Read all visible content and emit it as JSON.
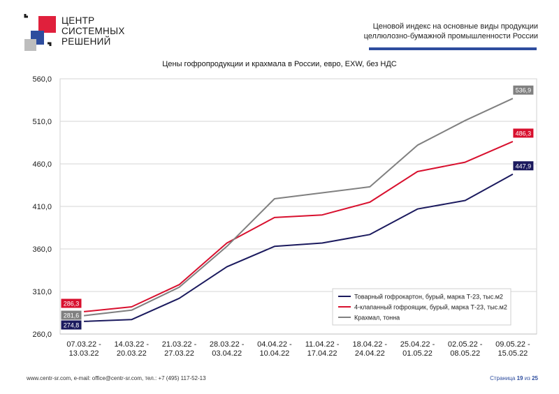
{
  "brand": {
    "name_lines": [
      "ЦЕНТР",
      "СИСТЕМНЫХ",
      "РЕШЕНИЙ"
    ],
    "colors": {
      "red": "#e0203c",
      "blue": "#2e4d9e",
      "gray": "#b8b8b8",
      "dark": "#1a1a1a"
    }
  },
  "header": {
    "title_line1": "Ценовой индекс на основные виды продукции",
    "title_line2": "целлюлозно-бумажной промышленности России"
  },
  "chart_data": {
    "type": "line",
    "title": "Цены гофропродукции и крахмала в России, евро, EXW, без НДС",
    "categories": [
      [
        "07.03.22 -",
        "13.03.22"
      ],
      [
        "14.03.22 -",
        "20.03.22"
      ],
      [
        "21.03.22 -",
        "27.03.22"
      ],
      [
        "28.03.22 -",
        "03.04.22"
      ],
      [
        "04.04.22 -",
        "10.04.22"
      ],
      [
        "11.04.22 -",
        "17.04.22"
      ],
      [
        "18.04.22 -",
        "24.04.22"
      ],
      [
        "25.04.22 -",
        "01.05.22"
      ],
      [
        "02.05.22 -",
        "08.05.22"
      ],
      [
        "09.05.22 -",
        "15.05.22"
      ]
    ],
    "ylim": [
      260,
      560
    ],
    "yticks": [
      "260,0",
      "310,0",
      "360,0",
      "410,0",
      "460,0",
      "510,0",
      "560,0"
    ],
    "ytick_values": [
      260,
      310,
      360,
      410,
      460,
      510,
      560
    ],
    "grid": "horizontal",
    "legend_position": "bottom-right",
    "series": [
      {
        "name": "Товарный гофрокартон, бурый, марка Т-23, тыс.м2",
        "color": "#1b1a5e",
        "values": [
          274.8,
          277.0,
          302.0,
          339.0,
          363.0,
          367.0,
          377.0,
          407.0,
          417.0,
          447.9
        ],
        "first_label": "274,8",
        "last_label": "447,9"
      },
      {
        "name": "4-клапанный гофроящик, бурый, марка Т-23, тыс.м2",
        "color": "#d8102e",
        "values": [
          286.3,
          292.0,
          318.0,
          367.0,
          397.0,
          400.0,
          415.0,
          451.0,
          462.0,
          486.3
        ],
        "first_label": "286,3",
        "last_label": "486,3"
      },
      {
        "name": "Крахмал, тонна",
        "color": "#808080",
        "values": [
          281.6,
          288.0,
          315.0,
          363.0,
          419.0,
          426.0,
          433.0,
          482.0,
          511.0,
          536.9
        ],
        "first_label": "281,6",
        "last_label": "536,9"
      }
    ]
  },
  "footer": {
    "contacts": "www.centr-sr.com, e-mail: office@centr-sr.com, тел.: +7 (495) 117-52-13",
    "page_word": "Страница",
    "page_num": "19",
    "of_word": "из",
    "page_total": "25"
  }
}
